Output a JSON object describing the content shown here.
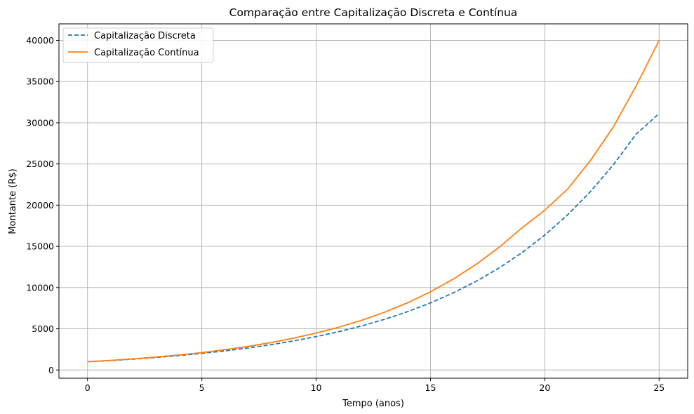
{
  "chart_data": {
    "type": "line",
    "title": "Comparação entre Capitalização Discreta e Contínua",
    "xlabel": "Tempo (anos)",
    "ylabel": "Montante (R$)",
    "xlim": [
      -1.25,
      26.25
    ],
    "ylim": [
      -1000,
      42000
    ],
    "xticks": [
      0,
      5,
      10,
      15,
      20,
      25
    ],
    "yticks": [
      0,
      5000,
      10000,
      15000,
      20000,
      25000,
      30000,
      35000,
      40000
    ],
    "grid": true,
    "legend_position": "upper-left",
    "x": [
      0,
      1,
      2,
      3,
      4,
      5,
      6,
      7,
      8,
      9,
      10,
      11,
      12,
      13,
      14,
      15,
      16,
      17,
      18,
      19,
      20,
      21,
      22,
      23,
      24,
      25
    ],
    "series": [
      {
        "name": "Capitalização Discreta",
        "style": "dashed",
        "color": "#1f77b4",
        "values": [
          1000,
          1150,
          1320,
          1520,
          1750,
          2010,
          2310,
          2660,
          3060,
          3520,
          4050,
          4650,
          5350,
          6150,
          7080,
          8140,
          9360,
          10760,
          12380,
          14230,
          16370,
          18820,
          21650,
          24900,
          28630,
          31120
        ]
      },
      {
        "name": "Capitalização Contínua",
        "style": "solid",
        "color": "#ff7f0e",
        "values": [
          1000,
          1160,
          1350,
          1570,
          1820,
          2110,
          2460,
          2850,
          3310,
          3850,
          4480,
          5200,
          6040,
          7020,
          8150,
          9490,
          11030,
          12820,
          14880,
          17240,
          19400,
          21950,
          25430,
          29500,
          34500,
          40000
        ]
      }
    ]
  }
}
